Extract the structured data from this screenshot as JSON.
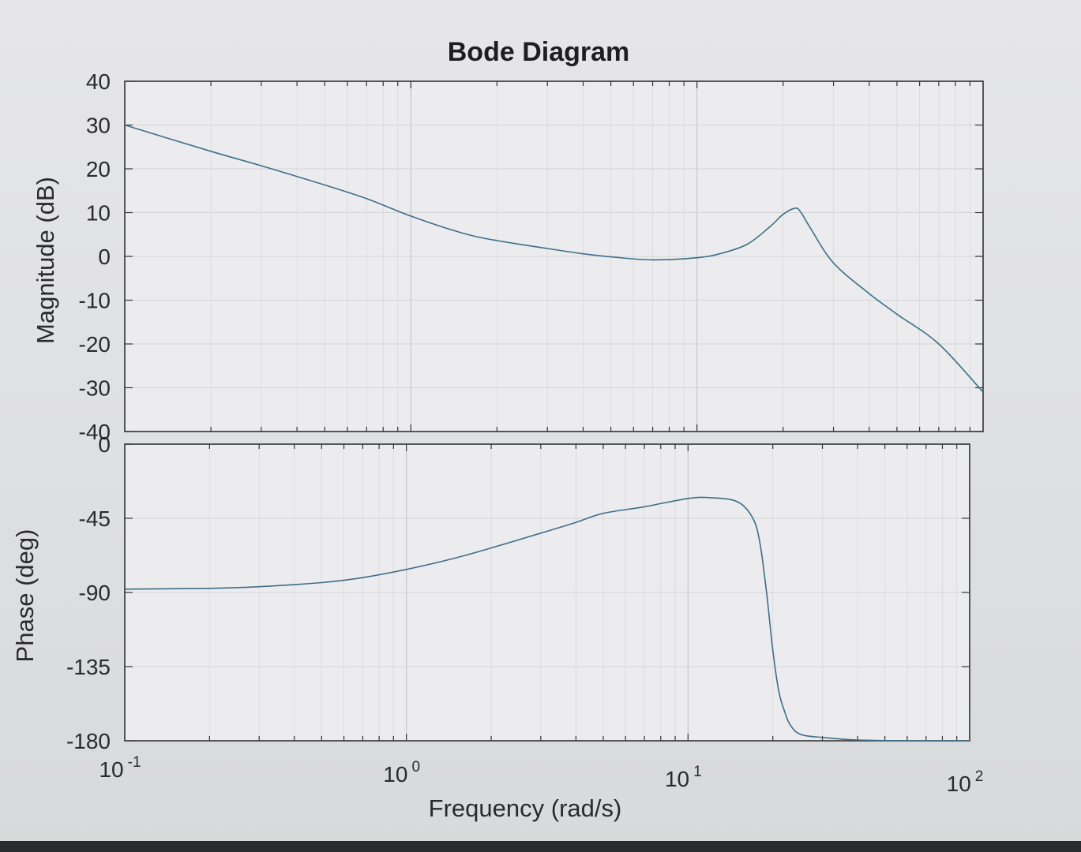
{
  "chart_data": {
    "type": "line",
    "title": "Bode Diagram",
    "xlabel": "Frequency  (rad/s)",
    "xscale": "log",
    "xlim": [
      0.1,
      100
    ],
    "x_ticks": [
      {
        "base": "10",
        "exp": "-1"
      },
      {
        "base": "10",
        "exp": "0"
      },
      {
        "base": "10",
        "exp": "1"
      },
      {
        "base": "10",
        "exp": "2"
      }
    ],
    "grid": true,
    "line_color": "#3d6e88",
    "subplots": [
      {
        "name": "magnitude",
        "ylabel": "Magnitude (dB)",
        "ylim": [
          -40,
          40
        ],
        "yticks": [
          "40",
          "30",
          "20",
          "10",
          "0",
          "-10",
          "-20",
          "-30",
          "-40"
        ],
        "x": [
          0.1,
          0.2,
          0.3,
          0.5,
          0.7,
          1,
          1.5,
          2,
          3,
          4,
          5,
          7,
          10,
          12,
          15,
          18,
          20,
          22,
          23,
          25,
          30,
          40,
          50,
          70,
          100
        ],
        "y": [
          30,
          24,
          20.7,
          16.3,
          13.2,
          9.2,
          5.4,
          3.6,
          1.8,
          0.6,
          -0.1,
          -0.8,
          -0.3,
          0.6,
          2.8,
          6.8,
          9.6,
          11,
          10.2,
          6.3,
          -1.5,
          -8.5,
          -13.2,
          -20,
          -31
        ]
      },
      {
        "name": "phase",
        "ylabel": "Phase (deg)",
        "ylim": [
          -180,
          0
        ],
        "yticks": [
          "0",
          "-45",
          "-90",
          "-135",
          "-180"
        ],
        "x": [
          0.1,
          0.2,
          0.3,
          0.5,
          0.7,
          1,
          1.5,
          2,
          3,
          4,
          5,
          7,
          10,
          12,
          15,
          17,
          18,
          19,
          20,
          21,
          22,
          23,
          25,
          30,
          40,
          60,
          100
        ],
        "y": [
          -88,
          -87.5,
          -86.5,
          -84,
          -81,
          -76,
          -69,
          -63,
          -54,
          -47.5,
          -42,
          -38,
          -33,
          -32.5,
          -35,
          -45,
          -60,
          -90,
          -125,
          -150,
          -162,
          -170,
          -176,
          -178,
          -179.5,
          -180,
          -180
        ]
      }
    ]
  }
}
